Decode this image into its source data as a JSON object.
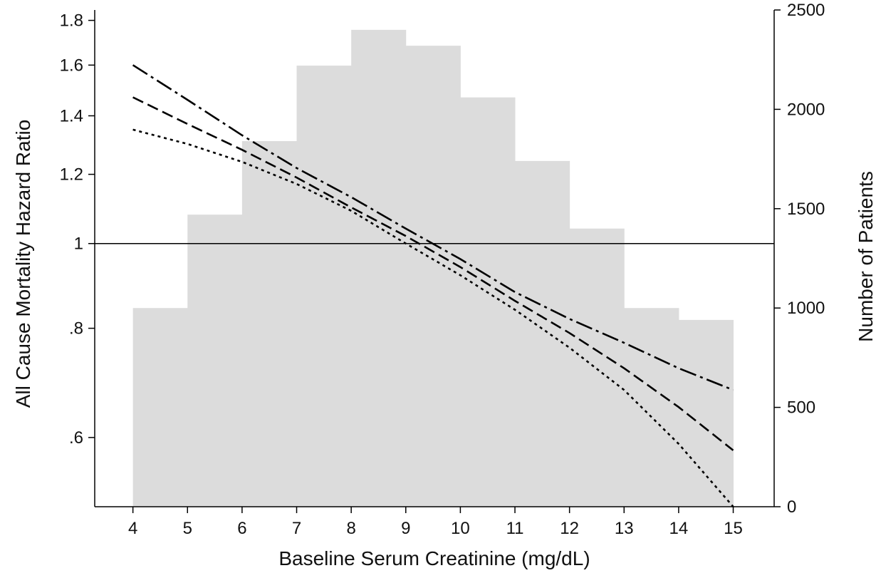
{
  "chart_data": {
    "type": "line",
    "xlabel": "Baseline Serum Creatinine (mg/dL)",
    "ylabel": "All Cause Mortality Hazard Ratio",
    "y2label": "Number of Patients",
    "xlim": [
      3.3,
      15.75
    ],
    "ylim": [
      0.5,
      1.85
    ],
    "y2lim": [
      0,
      2500
    ],
    "y_scale": "log",
    "x_ticks": [
      {
        "v": 4,
        "label": "4"
      },
      {
        "v": 5,
        "label": "5"
      },
      {
        "v": 6,
        "label": "6"
      },
      {
        "v": 7,
        "label": "7"
      },
      {
        "v": 8,
        "label": "8"
      },
      {
        "v": 9,
        "label": "9"
      },
      {
        "v": 10,
        "label": "10"
      },
      {
        "v": 11,
        "label": "11"
      },
      {
        "v": 12,
        "label": "12"
      },
      {
        "v": 13,
        "label": "13"
      },
      {
        "v": 14,
        "label": "14"
      },
      {
        "v": 15,
        "label": "15"
      }
    ],
    "y_ticks": [
      {
        "v": 0.6,
        "label": ".6"
      },
      {
        "v": 0.8,
        "label": ".8"
      },
      {
        "v": 1.0,
        "label": "1"
      },
      {
        "v": 1.2,
        "label": "1.2"
      },
      {
        "v": 1.4,
        "label": "1.4"
      },
      {
        "v": 1.6,
        "label": "1.6"
      },
      {
        "v": 1.8,
        "label": "1.8"
      }
    ],
    "y2_ticks": [
      {
        "v": 0,
        "label": "0"
      },
      {
        "v": 500,
        "label": "500"
      },
      {
        "v": 1000,
        "label": "1000"
      },
      {
        "v": 1500,
        "label": "1500"
      },
      {
        "v": 2000,
        "label": "2000"
      },
      {
        "v": 2500,
        "label": "2500"
      }
    ],
    "reference_line": 1.0,
    "histogram": {
      "axis": "right",
      "color": "#dcdcdc",
      "bins": [
        {
          "x0": 4,
          "x1": 5,
          "count": 1000
        },
        {
          "x0": 5,
          "x1": 6,
          "count": 1470
        },
        {
          "x0": 6,
          "x1": 7,
          "count": 1840
        },
        {
          "x0": 7,
          "x1": 8,
          "count": 2220
        },
        {
          "x0": 8,
          "x1": 9,
          "count": 2400
        },
        {
          "x0": 9,
          "x1": 10,
          "count": 2320
        },
        {
          "x0": 10,
          "x1": 11,
          "count": 2060
        },
        {
          "x0": 11,
          "x1": 12,
          "count": 1740
        },
        {
          "x0": 12,
          "x1": 13,
          "count": 1400
        },
        {
          "x0": 13,
          "x1": 14,
          "count": 1000
        },
        {
          "x0": 14,
          "x1": 15,
          "count": 940
        }
      ]
    },
    "series": [
      {
        "style": "dash-dot",
        "x": [
          4,
          5,
          6,
          7,
          8,
          9,
          10,
          11,
          12,
          13,
          14,
          15
        ],
        "y": [
          1.6,
          1.46,
          1.33,
          1.22,
          1.13,
          1.04,
          0.96,
          0.88,
          0.82,
          0.77,
          0.72,
          0.68
        ]
      },
      {
        "style": "dashed",
        "x": [
          4,
          5,
          6,
          7,
          8,
          9,
          10,
          11,
          12,
          13,
          14,
          15
        ],
        "y": [
          1.47,
          1.37,
          1.28,
          1.19,
          1.1,
          1.02,
          0.94,
          0.86,
          0.79,
          0.72,
          0.65,
          0.58
        ]
      },
      {
        "style": "dotted",
        "x": [
          4,
          5,
          6,
          7,
          8,
          9,
          10,
          11,
          12,
          13,
          14,
          15
        ],
        "y": [
          1.35,
          1.3,
          1.24,
          1.17,
          1.09,
          1.0,
          0.92,
          0.84,
          0.76,
          0.68,
          0.59,
          0.5
        ]
      }
    ]
  }
}
